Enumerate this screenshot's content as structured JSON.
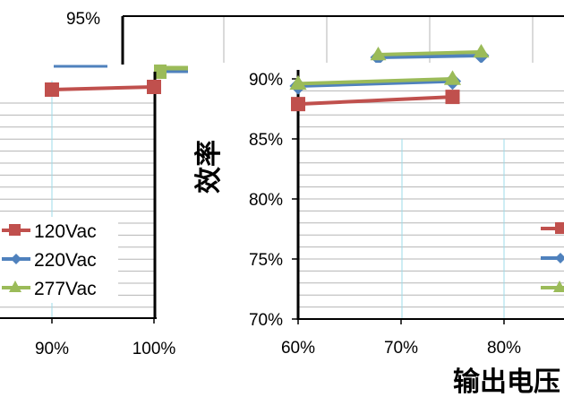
{
  "colors": {
    "120Vac": "#c0504d",
    "220Vac": "#4f81bd",
    "277Vac": "#9bbb59",
    "axis": "#000000",
    "grid": "#b5b5b5",
    "vgrid": "#9edbe8"
  },
  "chart_data": [
    {
      "type": "line",
      "panel": "background-upper",
      "ylim": [
        90,
        95
      ],
      "ytick_labels": [
        "95%"
      ],
      "series": [
        {
          "name": "120Vac",
          "x": [],
          "y": []
        },
        {
          "name": "220Vac",
          "x": [
            75,
            85
          ],
          "y": [
            91.6,
            91.8
          ]
        },
        {
          "name": "277Vac",
          "x": [
            75,
            85
          ],
          "y": [
            91.9,
            92.2
          ]
        }
      ]
    },
    {
      "type": "line",
      "panel": "left",
      "xlabel": "",
      "ylabel": "",
      "xtick_labels": [
        "90%",
        "100%"
      ],
      "legend": [
        "120Vac",
        "220Vac",
        "277Vac"
      ],
      "legend_position": "bottom-left",
      "series": [
        {
          "name": "120Vac",
          "x": [
            90,
            100
          ],
          "y": [
            88.9,
            89.0
          ]
        },
        {
          "name": "220Vac",
          "x": [],
          "y": []
        },
        {
          "name": "277Vac",
          "x": [],
          "y": []
        }
      ]
    },
    {
      "type": "line",
      "panel": "right",
      "xlabel": "输出电压",
      "ylabel": "效率",
      "xlim": [
        60,
        90
      ],
      "ylim": [
        70,
        90
      ],
      "xtick_labels": [
        "60%",
        "70%",
        "80%"
      ],
      "ytick_labels": [
        "70%",
        "75%",
        "80%",
        "85%",
        "90%"
      ],
      "grid": true,
      "legend": [
        "120Vac",
        "220Vac",
        "277Vac"
      ],
      "legend_position": "right",
      "series": [
        {
          "name": "120Vac",
          "x": [
            60,
            75
          ],
          "y": [
            87.9,
            88.5
          ]
        },
        {
          "name": "220Vac",
          "x": [
            60,
            75
          ],
          "y": [
            89.4,
            89.8
          ]
        },
        {
          "name": "277Vac",
          "x": [
            60,
            75
          ],
          "y": [
            89.6,
            90.0
          ]
        }
      ]
    }
  ]
}
